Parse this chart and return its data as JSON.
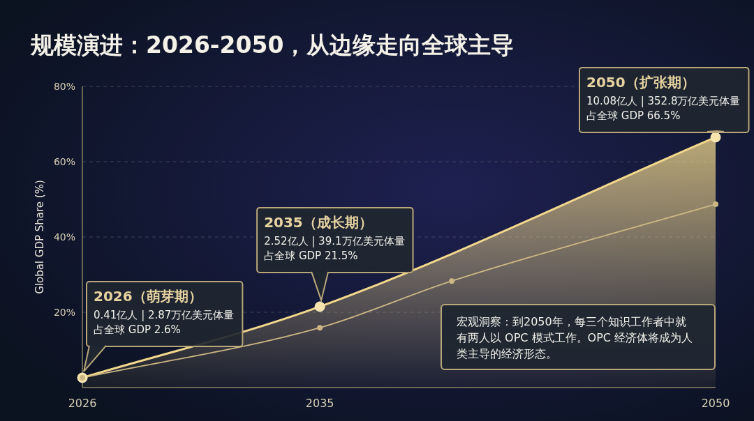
{
  "chart_data": {
    "type": "line",
    "title": "规模演进：2026-2050，从边缘走向全球主导",
    "ylabel": "Global GDP Share (%)",
    "xlim": [
      2026,
      2050
    ],
    "xticks": [
      2026,
      2035,
      2050
    ],
    "ylim": [
      0,
      80
    ],
    "yticks": [
      {
        "value": 20,
        "label": "20%"
      },
      {
        "value": 40,
        "label": "40%"
      },
      {
        "value": 60,
        "label": "60%"
      },
      {
        "value": 80,
        "label": "80%"
      }
    ],
    "grid": "y",
    "marker": "circle",
    "series": [
      {
        "type": "area",
        "color": "#f2d88c",
        "x": [
          2026,
          2035,
          2050
        ],
        "values": [
          2.6,
          21.5,
          66.5
        ]
      },
      {
        "type": "line",
        "color": "#cbb684",
        "x": [
          2026,
          2035,
          2040,
          2050
        ],
        "values": [
          2.6,
          15.9,
          28.3,
          48.7
        ]
      }
    ],
    "annotations": [
      "2026（萌芽期）",
      "0.41亿人 | 2.87万亿美元体量",
      "占全球 GDP 2.6%",
      "2035（成长期）",
      "2.52亿人 | 39.1万亿美元体量",
      "占全球 GDP 21.5%",
      "2050（扩张期）",
      "10.08亿人 | 352.8万亿美元体量",
      "占全球 GDP 66.5%",
      "宏观洞察：到2050年，每三个知识工作者中就有两人以 OPC 模式工作。OPC 经济体将成为人类主导的经济形态。"
    ]
  }
}
